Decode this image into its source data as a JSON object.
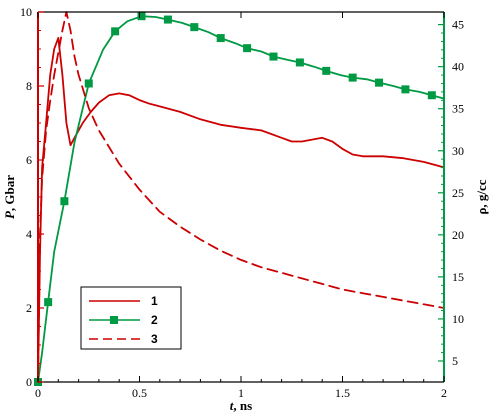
{
  "chart_data": {
    "type": "line",
    "xlabel": {
      "italic": "t",
      "rest": ", ns"
    },
    "ylabel_left": {
      "italic": "P",
      "rest": ", Gbar"
    },
    "ylabel_right": "ρ, g/cc",
    "xlim": [
      0,
      2
    ],
    "ylim_left": [
      0,
      10
    ],
    "ylim_right": [
      2.5,
      46.5
    ],
    "xticks": [
      0,
      0.5,
      1,
      1.5,
      2
    ],
    "xtick_labels": [
      "0",
      "0.5",
      "1",
      "1.5",
      "2"
    ],
    "yticks_left": [
      0,
      2,
      4,
      6,
      8,
      10
    ],
    "ytick_labels_left": [
      "0",
      "2",
      "4",
      "6",
      "8",
      "10"
    ],
    "yticks_right": [
      5,
      10,
      15,
      20,
      25,
      30,
      35,
      40,
      45
    ],
    "ytick_labels_right": [
      "5",
      "10",
      "15",
      "20",
      "25",
      "30",
      "35",
      "40",
      "45"
    ],
    "grid": false,
    "legend_position": "bottom-left",
    "colors": {
      "left_axis": "#cc0000",
      "right_axis": "#009944",
      "series_1": "#cc0000",
      "series_2": "#009944",
      "series_3": "#cc0000"
    },
    "series": [
      {
        "name": "1",
        "axis": "left",
        "style": "solid",
        "x": [
          0,
          0.01,
          0.02,
          0.04,
          0.06,
          0.08,
          0.1,
          0.12,
          0.14,
          0.16,
          0.18,
          0.22,
          0.26,
          0.3,
          0.35,
          0.4,
          0.45,
          0.5,
          0.55,
          0.6,
          0.7,
          0.8,
          0.9,
          1.0,
          1.1,
          1.2,
          1.25,
          1.3,
          1.35,
          1.4,
          1.45,
          1.5,
          1.55,
          1.6,
          1.7,
          1.8,
          1.9,
          2.0
        ],
        "y": [
          0,
          3.5,
          5.8,
          7.0,
          8.3,
          9.0,
          9.3,
          8.3,
          7.0,
          6.4,
          6.6,
          7.0,
          7.3,
          7.55,
          7.75,
          7.8,
          7.75,
          7.62,
          7.52,
          7.45,
          7.3,
          7.1,
          6.95,
          6.87,
          6.8,
          6.6,
          6.5,
          6.5,
          6.55,
          6.6,
          6.5,
          6.3,
          6.15,
          6.1,
          6.1,
          6.05,
          5.95,
          5.8
        ]
      },
      {
        "name": "2",
        "axis": "right",
        "style": "solid-square-markers",
        "x": [
          0,
          0.02,
          0.05,
          0.08,
          0.13,
          0.18,
          0.25,
          0.32,
          0.38,
          0.44,
          0.51,
          0.58,
          0.64,
          0.71,
          0.77,
          0.84,
          0.9,
          0.97,
          1.03,
          1.1,
          1.16,
          1.23,
          1.29,
          1.36,
          1.42,
          1.49,
          1.55,
          1.62,
          1.68,
          1.75,
          1.81,
          1.88,
          1.94,
          2.0
        ],
        "y": [
          2.5,
          6,
          12,
          18,
          24,
          31,
          38,
          42,
          44.2,
          45.4,
          46,
          45.9,
          45.6,
          45.2,
          44.7,
          44.1,
          43.4,
          42.8,
          42.2,
          41.8,
          41.2,
          40.8,
          40.5,
          40.0,
          39.5,
          39.0,
          38.7,
          38.5,
          38.1,
          37.7,
          37.3,
          37.0,
          36.6,
          36.2
        ]
      },
      {
        "name": "3",
        "axis": "left",
        "style": "dashed",
        "x": [
          0,
          0.01,
          0.02,
          0.04,
          0.06,
          0.08,
          0.1,
          0.12,
          0.14,
          0.16,
          0.18,
          0.2,
          0.25,
          0.3,
          0.4,
          0.5,
          0.6,
          0.7,
          0.8,
          0.9,
          1.0,
          1.1,
          1.2,
          1.3,
          1.4,
          1.5,
          1.6,
          1.7,
          1.8,
          1.9,
          2.0
        ],
        "y": [
          0,
          4.0,
          5.5,
          6.8,
          7.6,
          8.3,
          8.9,
          9.5,
          10.0,
          9.5,
          8.8,
          8.3,
          7.4,
          6.8,
          5.9,
          5.2,
          4.6,
          4.2,
          3.85,
          3.55,
          3.3,
          3.1,
          2.95,
          2.8,
          2.65,
          2.5,
          2.4,
          2.3,
          2.2,
          2.1,
          2.0
        ]
      }
    ]
  }
}
